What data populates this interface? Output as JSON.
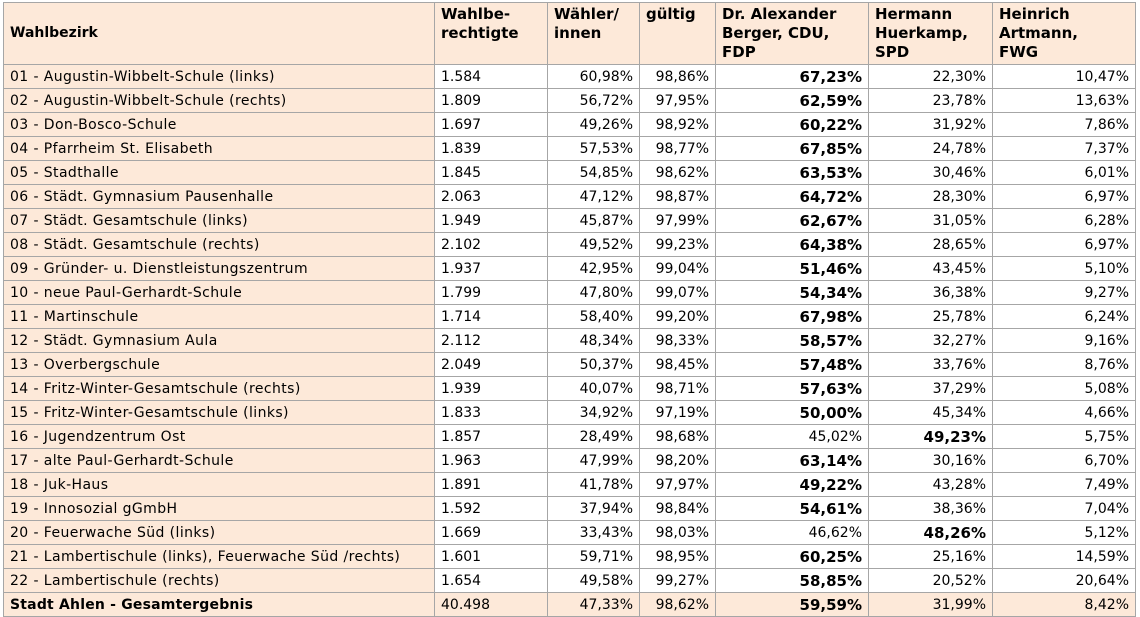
{
  "headers": [
    "Wahlbezirk",
    "Wahlbe-\nrechtigte",
    "Wähler/\ninnen",
    "gültig",
    "Dr. Alexander\nBerger, CDU,\nFDP",
    "Hermann\nHuerkamp,\nSPD",
    "Heinrich\nArtmann,\nFWG"
  ],
  "rows": [
    {
      "name": "01 - Augustin-Wibbelt-Schule (links)",
      "wahlberechtigte": "1.584",
      "waehler": "60,98%",
      "gueltig": "98,86%",
      "berger": "67,23%",
      "huerkamp": "22,30%",
      "artmann": "10,47%",
      "winner": "berger"
    },
    {
      "name": "02 - Augustin-Wibbelt-Schule (rechts)",
      "wahlberechtigte": "1.809",
      "waehler": "56,72%",
      "gueltig": "97,95%",
      "berger": "62,59%",
      "huerkamp": "23,78%",
      "artmann": "13,63%",
      "winner": "berger"
    },
    {
      "name": "03 - Don-Bosco-Schule",
      "wahlberechtigte": "1.697",
      "waehler": "49,26%",
      "gueltig": "98,92%",
      "berger": "60,22%",
      "huerkamp": "31,92%",
      "artmann": "7,86%",
      "winner": "berger"
    },
    {
      "name": "04 - Pfarrheim St. Elisabeth",
      "wahlberechtigte": "1.839",
      "waehler": "57,53%",
      "gueltig": "98,77%",
      "berger": "67,85%",
      "huerkamp": "24,78%",
      "artmann": "7,37%",
      "winner": "berger"
    },
    {
      "name": "05 - Stadthalle",
      "wahlberechtigte": "1.845",
      "waehler": "54,85%",
      "gueltig": "98,62%",
      "berger": "63,53%",
      "huerkamp": "30,46%",
      "artmann": "6,01%",
      "winner": "berger"
    },
    {
      "name": "06 - Städt. Gymnasium Pausenhalle",
      "wahlberechtigte": "2.063",
      "waehler": "47,12%",
      "gueltig": "98,87%",
      "berger": "64,72%",
      "huerkamp": "28,30%",
      "artmann": "6,97%",
      "winner": "berger"
    },
    {
      "name": "07 - Städt. Gesamtschule (links)",
      "wahlberechtigte": "1.949",
      "waehler": "45,87%",
      "gueltig": "97,99%",
      "berger": "62,67%",
      "huerkamp": "31,05%",
      "artmann": "6,28%",
      "winner": "berger"
    },
    {
      "name": "08 - Städt. Gesamtschule (rechts)",
      "wahlberechtigte": "2.102",
      "waehler": "49,52%",
      "gueltig": "99,23%",
      "berger": "64,38%",
      "huerkamp": "28,65%",
      "artmann": "6,97%",
      "winner": "berger"
    },
    {
      "name": "09 - Gründer- u. Dienstleistungszentrum",
      "wahlberechtigte": "1.937",
      "waehler": "42,95%",
      "gueltig": "99,04%",
      "berger": "51,46%",
      "huerkamp": "43,45%",
      "artmann": "5,10%",
      "winner": "berger"
    },
    {
      "name": "10 - neue Paul-Gerhardt-Schule",
      "wahlberechtigte": "1.799",
      "waehler": "47,80%",
      "gueltig": "99,07%",
      "berger": "54,34%",
      "huerkamp": "36,38%",
      "artmann": "9,27%",
      "winner": "berger"
    },
    {
      "name": "11 - Martinschule",
      "wahlberechtigte": "1.714",
      "waehler": "58,40%",
      "gueltig": "99,20%",
      "berger": "67,98%",
      "huerkamp": "25,78%",
      "artmann": "6,24%",
      "winner": "berger"
    },
    {
      "name": "12 - Städt. Gymnasium Aula",
      "wahlberechtigte": "2.112",
      "waehler": "48,34%",
      "gueltig": "98,33%",
      "berger": "58,57%",
      "huerkamp": "32,27%",
      "artmann": "9,16%",
      "winner": "berger"
    },
    {
      "name": "13 - Overbergschule",
      "wahlberechtigte": "2.049",
      "waehler": "50,37%",
      "gueltig": "98,45%",
      "berger": "57,48%",
      "huerkamp": "33,76%",
      "artmann": "8,76%",
      "winner": "berger"
    },
    {
      "name": "14 - Fritz-Winter-Gesamtschule (rechts)",
      "wahlberechtigte": "1.939",
      "waehler": "40,07%",
      "gueltig": "98,71%",
      "berger": "57,63%",
      "huerkamp": "37,29%",
      "artmann": "5,08%",
      "winner": "berger"
    },
    {
      "name": "15 - Fritz-Winter-Gesamtschule (links)",
      "wahlberechtigte": "1.833",
      "waehler": "34,92%",
      "gueltig": "97,19%",
      "berger": "50,00%",
      "huerkamp": "45,34%",
      "artmann": "4,66%",
      "winner": "berger"
    },
    {
      "name": "16 - Jugendzentrum Ost",
      "wahlberechtigte": "1.857",
      "waehler": "28,49%",
      "gueltig": "98,68%",
      "berger": "45,02%",
      "huerkamp": "49,23%",
      "artmann": "5,75%",
      "winner": "huerkamp"
    },
    {
      "name": "17 - alte Paul-Gerhardt-Schule",
      "wahlberechtigte": "1.963",
      "waehler": "47,99%",
      "gueltig": "98,20%",
      "berger": "63,14%",
      "huerkamp": "30,16%",
      "artmann": "6,70%",
      "winner": "berger"
    },
    {
      "name": "18 - Juk-Haus",
      "wahlberechtigte": "1.891",
      "waehler": "41,78%",
      "gueltig": "97,97%",
      "berger": "49,22%",
      "huerkamp": "43,28%",
      "artmann": "7,49%",
      "winner": "berger"
    },
    {
      "name": "19 - Innosozial gGmbH",
      "wahlberechtigte": "1.592",
      "waehler": "37,94%",
      "gueltig": "98,84%",
      "berger": "54,61%",
      "huerkamp": "38,36%",
      "artmann": "7,04%",
      "winner": "berger"
    },
    {
      "name": "20 - Feuerwache Süd (links)",
      "wahlberechtigte": "1.669",
      "waehler": "33,43%",
      "gueltig": "98,03%",
      "berger": "46,62%",
      "huerkamp": "48,26%",
      "artmann": "5,12%",
      "winner": "huerkamp"
    },
    {
      "name": "21 - Lambertischule (links), Feuerwache Süd /rechts)",
      "wahlberechtigte": "1.601",
      "waehler": "59,71%",
      "gueltig": "98,95%",
      "berger": "60,25%",
      "huerkamp": "25,16%",
      "artmann": "14,59%",
      "winner": "berger"
    },
    {
      "name": "22 - Lambertischule (rechts)",
      "wahlberechtigte": "1.654",
      "waehler": "49,58%",
      "gueltig": "99,27%",
      "berger": "58,85%",
      "huerkamp": "20,52%",
      "artmann": "20,64%",
      "winner": "berger"
    }
  ],
  "total": {
    "name": "Stadt Ahlen - Gesamtergebnis",
    "wahlberechtigte": "40.498",
    "waehler": "47,33%",
    "gueltig": "98,62%",
    "berger": "59,59%",
    "huerkamp": "31,99%",
    "artmann": "8,42%",
    "winner": "berger"
  },
  "colors": {
    "header_bg": "#fde9d9",
    "border": "#a6a6a6"
  }
}
